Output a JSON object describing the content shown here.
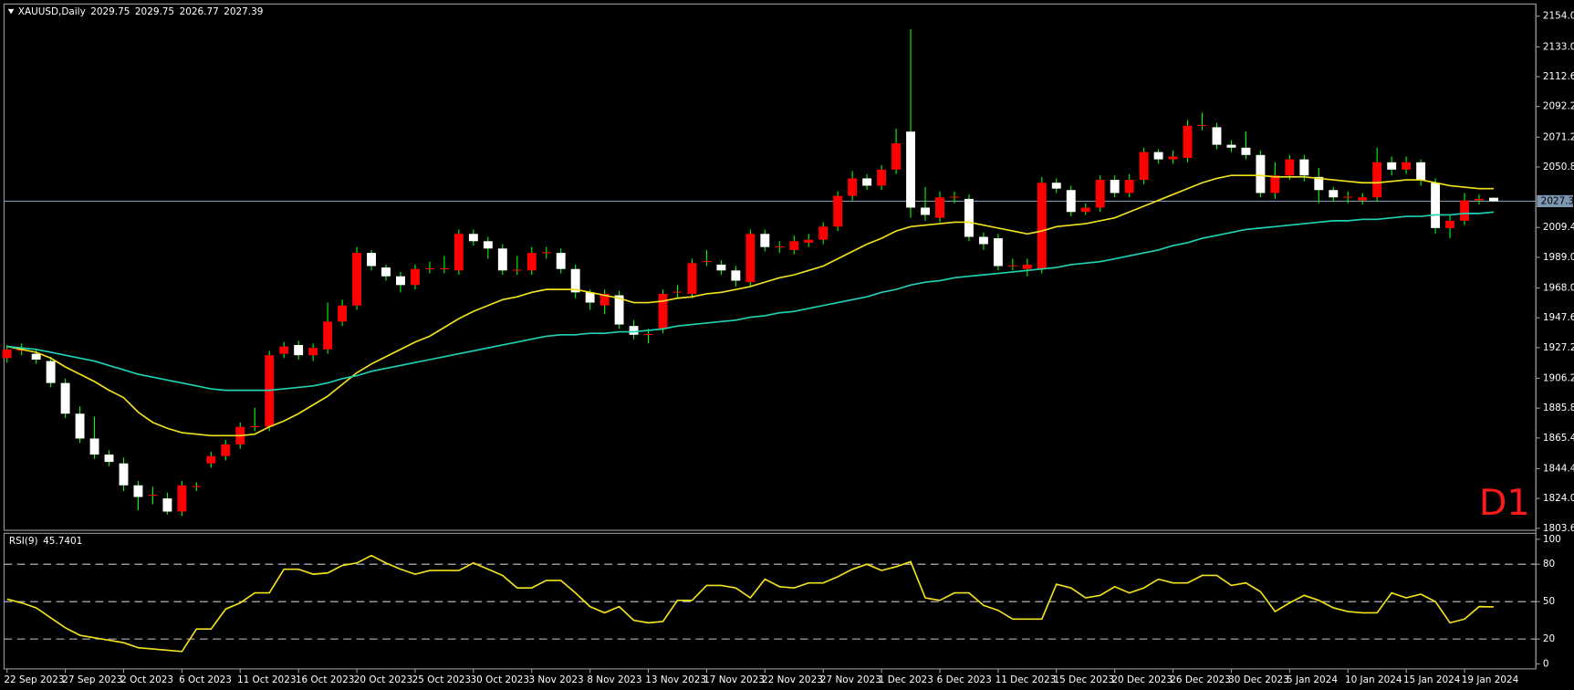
{
  "chart_data": [
    {
      "type": "candlestick",
      "title": "XAUUSD,Daily",
      "label": "D1",
      "up_color": "#ff0000",
      "down_color": "#ffffff",
      "wick_color": "#00ff00",
      "price_line_color": "#7f97b2",
      "categories": [
        "22 Sep 2023",
        null,
        null,
        null,
        "27 Sep 2023",
        null,
        null,
        null,
        "2 Oct 2023",
        null,
        null,
        null,
        "6 Oct 2023",
        null,
        null,
        null,
        "11 Oct 2023",
        null,
        null,
        null,
        "16 Oct 2023",
        null,
        null,
        null,
        "20 Oct 2023",
        null,
        null,
        null,
        "25 Oct 2023",
        null,
        null,
        null,
        "30 Oct 2023",
        null,
        null,
        null,
        "3 Nov 2023",
        null,
        null,
        null,
        "8 Nov 2023",
        null,
        null,
        null,
        "13 Nov 2023",
        null,
        null,
        null,
        "17 Nov 2023",
        null,
        null,
        null,
        "22 Nov 2023",
        null,
        null,
        null,
        "27 Nov 2023",
        null,
        null,
        null,
        "1 Dec 2023",
        null,
        null,
        null,
        "6 Dec 2023",
        null,
        null,
        null,
        "11 Dec 2023",
        null,
        null,
        null,
        "15 Dec 2023",
        null,
        null,
        null,
        "20 Dec 2023",
        null,
        null,
        null,
        "26 Dec 2023",
        null,
        null,
        null,
        "30 Dec 2023",
        null,
        null,
        null,
        "5 Jan 2024",
        null,
        null,
        null,
        "10 Jan 2024",
        null,
        null,
        null,
        "15 Jan 2024",
        null,
        null,
        null,
        "19 Jan 2024",
        null,
        null
      ],
      "open": [
        1920,
        1925,
        1923,
        1918,
        1903,
        1882,
        1865,
        1854,
        1848,
        1833,
        1826,
        1824,
        1815,
        1832,
        1848,
        1853,
        1861,
        1873,
        1873,
        1923,
        1929,
        1922,
        1926,
        1945,
        1956,
        1992,
        1982,
        1976,
        1970,
        1981,
        1981,
        1980,
        2005,
        2000,
        1995,
        1980,
        1980,
        1992,
        1992,
        1981,
        1965,
        1956,
        1963,
        1942,
        1936,
        1940,
        1965,
        1964,
        1986,
        1984,
        1980,
        1972,
        2005,
        1996,
        1994,
        1999,
        2001,
        2010,
        2031,
        2043,
        2038,
        2049,
        2075,
        2023,
        2016,
        2030,
        2029,
        2003,
        2002,
        1983,
        1981,
        1981,
        2040,
        2035,
        2020,
        2023,
        2042,
        2033,
        2042,
        2061,
        2056,
        2057,
        2079,
        2078,
        2066,
        2064,
        2059,
        2033,
        2045,
        2056,
        2044,
        2035,
        2030,
        2028,
        2030,
        2054,
        2049,
        2054,
        2040,
        2009,
        2014,
        2028,
        2029.75
      ],
      "high": [
        1929,
        1930,
        1926,
        1921,
        1906,
        1887,
        1880,
        1857,
        1852,
        1836,
        1832,
        1828,
        1836,
        1835,
        1856,
        1864,
        1876,
        1886,
        1925,
        1931,
        1932,
        1930,
        1958,
        1960,
        1996,
        1994,
        1984,
        1979,
        1984,
        1986,
        1990,
        2008,
        2008,
        2003,
        1998,
        1990,
        1996,
        1996,
        1995,
        1984,
        1967,
        1967,
        1966,
        1946,
        1940,
        1967,
        1970,
        1988,
        1994,
        1987,
        1983,
        2008,
        2008,
        2000,
        2004,
        2005,
        2013,
        2034,
        2048,
        2046,
        2052,
        2077,
        2145,
        2037,
        2034,
        2034,
        2032,
        2006,
        2005,
        1988,
        1988,
        2044,
        2043,
        2038,
        2026,
        2045,
        2045,
        2046,
        2064,
        2063,
        2062,
        2083,
        2088,
        2081,
        2069,
        2075,
        2062,
        2054,
        2059,
        2059,
        2050,
        2037,
        2034,
        2033,
        2064,
        2058,
        2058,
        2056,
        2043,
        2018,
        2033,
        2032,
        2029.75
      ],
      "low": [
        1917,
        1922,
        1916,
        1900,
        1879,
        1862,
        1851,
        1846,
        1829,
        1816,
        1820,
        1813,
        1812,
        1829,
        1845,
        1850,
        1858,
        1870,
        1870,
        1920,
        1919,
        1918,
        1923,
        1942,
        1953,
        1980,
        1973,
        1965,
        1967,
        1978,
        1978,
        1977,
        1997,
        1988,
        1977,
        1977,
        1977,
        1988,
        1978,
        1961,
        1953,
        1950,
        1940,
        1933,
        1930,
        1937,
        1961,
        1961,
        1983,
        1977,
        1969,
        1969,
        1993,
        1992,
        1991,
        1996,
        1998,
        2007,
        2028,
        2035,
        2035,
        2046,
        2016,
        2014,
        2013,
        2026,
        2000,
        1994,
        1980,
        1980,
        1976,
        1978,
        2033,
        2017,
        2018,
        2020,
        2030,
        2030,
        2039,
        2053,
        2053,
        2054,
        2076,
        2063,
        2061,
        2056,
        2030,
        2029,
        2042,
        2041,
        2026,
        2027,
        2026,
        2025,
        2027,
        2045,
        2046,
        2038,
        2005,
        2002,
        2011,
        2025,
        2026.77
      ],
      "close": [
        1926,
        1927,
        1919,
        1903,
        1882,
        1865,
        1854,
        1849,
        1833,
        1825,
        1826.5,
        1815,
        1833,
        1832.5,
        1853,
        1861,
        1873,
        1873.5,
        1922,
        1928,
        1922,
        1927,
        1945,
        1956,
        1992,
        1983,
        1976,
        1970,
        1981,
        1981.5,
        1981.5,
        2005,
        2000,
        1995,
        1980,
        1980.5,
        1992,
        1992.5,
        1981,
        1965,
        1958,
        1964,
        1943,
        1936,
        1936.5,
        1964,
        1965.5,
        1985,
        1986.5,
        1980,
        1973,
        2005,
        1996,
        1996.5,
        2000,
        2001,
        2010,
        2031,
        2043,
        2038,
        2049,
        2067,
        2023,
        2018,
        2030,
        2030.5,
        2003,
        1998,
        1983,
        1983.5,
        1984,
        2040,
        2036,
        2020,
        2023,
        2042,
        2033,
        2042,
        2061,
        2056,
        2058,
        2079,
        2079.5,
        2066,
        2064,
        2059,
        2033,
        2045,
        2056,
        2045,
        2035,
        2030,
        2030.5,
        2030,
        2054,
        2049,
        2054,
        2042,
        2009,
        2014,
        2028,
        2029,
        2027.39
      ],
      "series": [
        {
          "color": "#f2e21c",
          "values": [
            1928,
            1926,
            1924,
            1920,
            1914,
            1909,
            1904,
            1898,
            1893,
            1883,
            1876,
            1872,
            1869,
            1868,
            1867,
            1867,
            1867,
            1868,
            1873,
            1877,
            1882,
            1888,
            1894,
            1902,
            1910,
            1916,
            1921,
            1926,
            1931,
            1935,
            1941,
            1947,
            1952,
            1956,
            1960,
            1962,
            1965,
            1967,
            1967,
            1967,
            1965,
            1963,
            1961,
            1958,
            1958,
            1959,
            1961,
            1962,
            1964,
            1965,
            1967,
            1969,
            1972,
            1975,
            1977,
            1980,
            1983,
            1988,
            1993,
            1998,
            2002,
            2007,
            2010,
            2011,
            2012,
            2013,
            2013,
            2011,
            2009,
            2007,
            2005,
            2007,
            2010,
            2011,
            2012,
            2014,
            2016,
            2020,
            2024,
            2028,
            2032,
            2036,
            2040,
            2043,
            2045,
            2045,
            2045,
            2044,
            2044,
            2044,
            2043,
            2042,
            2041,
            2040,
            2040,
            2041,
            2042,
            2042,
            2040,
            2038,
            2037,
            2036,
            2036
          ]
        },
        {
          "color": "#1fd2b4",
          "values": [
            1928,
            1927,
            1926,
            1924,
            1922,
            1920,
            1918,
            1915,
            1912,
            1909,
            1907,
            1905,
            1903,
            1901,
            1899,
            1898,
            1898,
            1898,
            1898,
            1899,
            1900,
            1901,
            1903,
            1906,
            1908,
            1911,
            1913,
            1915,
            1917,
            1919,
            1921,
            1923,
            1925,
            1927,
            1929,
            1931,
            1933,
            1935,
            1936,
            1936,
            1937,
            1937,
            1938,
            1938,
            1939,
            1940,
            1942,
            1943,
            1944,
            1945,
            1946,
            1948,
            1949,
            1951,
            1952,
            1954,
            1956,
            1958,
            1960,
            1962,
            1965,
            1967,
            1970,
            1972,
            1973,
            1975,
            1976,
            1977,
            1978,
            1979,
            1980,
            1981,
            1982,
            1984,
            1985,
            1986,
            1988,
            1990,
            1992,
            1994,
            1997,
            1999,
            2002,
            2004,
            2006,
            2008,
            2009,
            2010,
            2011,
            2012,
            2013,
            2014,
            2014,
            2015,
            2015,
            2016,
            2017,
            2017,
            2018,
            2018,
            2019,
            2019,
            2020
          ]
        }
      ],
      "ylim": [
        1802.2,
        2162.3
      ],
      "yticks": [
        {
          "value": 2154,
          "label": "2154.00"
        },
        {
          "value": 2133,
          "label": "2133.00"
        },
        {
          "value": 2112.6,
          "label": "2112.60"
        },
        {
          "value": 2092.2,
          "label": "2092.20"
        },
        {
          "value": 2071.2,
          "label": "2071.20"
        },
        {
          "value": 2050.8,
          "label": "2050.80"
        },
        {
          "value": 2009.4,
          "label": "2009.40"
        },
        {
          "value": 1989,
          "label": "1989.00"
        },
        {
          "value": 1968,
          "label": "1968.00"
        },
        {
          "value": 1947.6,
          "label": "1947.60"
        },
        {
          "value": 1927.2,
          "label": "1927.20"
        },
        {
          "value": 1906.2,
          "label": "1906.20"
        },
        {
          "value": 1885.8,
          "label": "1885.80"
        },
        {
          "value": 1865.4,
          "label": "1865.40"
        },
        {
          "value": 1844.4,
          "label": "1844.40"
        },
        {
          "value": 1824,
          "label": "1824.00"
        },
        {
          "value": 1803.6,
          "label": "1803.60"
        }
      ]
    },
    {
      "type": "line",
      "title": "RSI(9)",
      "current": 45.7401,
      "color": "#f2e21c",
      "level_color": "#c8c8c8",
      "values": [
        52,
        49,
        45,
        37,
        29,
        23,
        21,
        19,
        17,
        13,
        12,
        11,
        10,
        28,
        28,
        44,
        49,
        57,
        57,
        76,
        76,
        72,
        73,
        79,
        81,
        87,
        81,
        76,
        72,
        75,
        75,
        75,
        81,
        76,
        71,
        61,
        61,
        67,
        67,
        57,
        46,
        41,
        46,
        35,
        33,
        34,
        51,
        51,
        63,
        63,
        61,
        53,
        68,
        62,
        61,
        65,
        65,
        70,
        76,
        80,
        75,
        78,
        82,
        53,
        51,
        57,
        57,
        47,
        43,
        36,
        36,
        36,
        64,
        61,
        53,
        55,
        62,
        57,
        61,
        68,
        65,
        65,
        71,
        71,
        63,
        65,
        58,
        42,
        49,
        55,
        51,
        45,
        42,
        41,
        41,
        57,
        53,
        56,
        50,
        33,
        36,
        46,
        45.7401
      ],
      "ylim": [
        -4,
        104.8
      ],
      "yticks": [
        0,
        20,
        50,
        80,
        100
      ],
      "levels": [
        20,
        50,
        80
      ]
    }
  ]
}
